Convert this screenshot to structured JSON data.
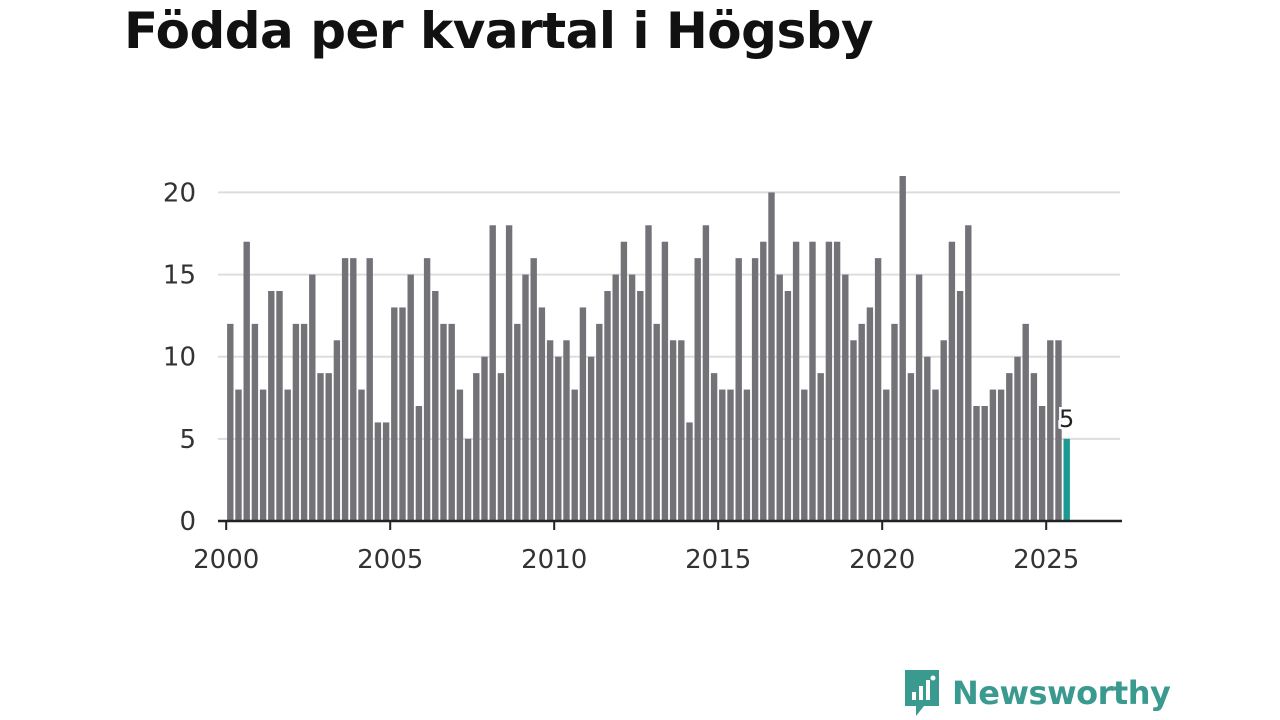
{
  "title": "Födda per kvartal i Högsby",
  "brand": {
    "name": "Newsworthy",
    "icon": "newsworthy-logo-icon",
    "color": "#3a9a8f"
  },
  "colors": {
    "bar": "#737277",
    "highlight": "#1a9a91",
    "grid": "#dddddd",
    "axis": "#222222"
  },
  "chart_data": {
    "type": "bar",
    "title": "Födda per kvartal i Högsby",
    "xlabel": "",
    "ylabel": "",
    "x_start": 2000,
    "periods_per_year": 4,
    "xlim": [
      1999.75,
      2027.25
    ],
    "ylim": [
      0,
      21
    ],
    "y_ticks": [
      0,
      5,
      10,
      15,
      20
    ],
    "x_ticks": [
      2000,
      2005,
      2010,
      2015,
      2020,
      2025
    ],
    "grid": true,
    "values": [
      12,
      8,
      17,
      12,
      8,
      14,
      14,
      8,
      12,
      12,
      15,
      9,
      9,
      11,
      16,
      16,
      8,
      16,
      6,
      6,
      13,
      13,
      15,
      7,
      16,
      14,
      12,
      12,
      8,
      5,
      9,
      10,
      18,
      9,
      18,
      12,
      15,
      16,
      13,
      11,
      10,
      11,
      8,
      13,
      10,
      12,
      14,
      15,
      17,
      15,
      14,
      18,
      12,
      17,
      11,
      11,
      6,
      16,
      18,
      9,
      8,
      8,
      16,
      8,
      16,
      17,
      20,
      15,
      14,
      17,
      8,
      17,
      9,
      17,
      17,
      15,
      11,
      12,
      13,
      16,
      8,
      12,
      21,
      9,
      15,
      10,
      8,
      11,
      17,
      14,
      18,
      7,
      7,
      8,
      8,
      9,
      10,
      12,
      9,
      7,
      11,
      11,
      5
    ],
    "highlight_index": 102,
    "highlight_label": "5"
  }
}
